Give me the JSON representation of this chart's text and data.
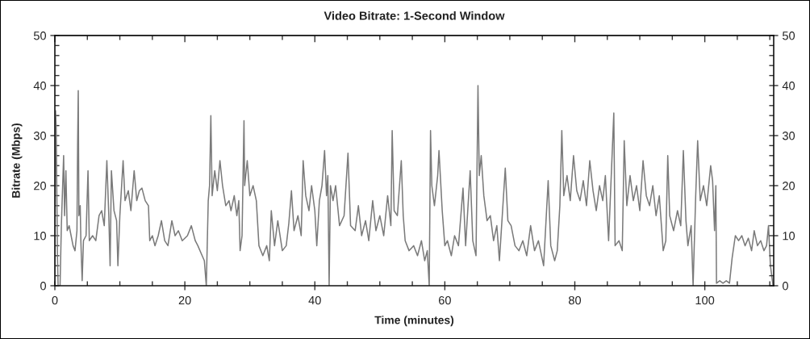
{
  "chart_data": {
    "type": "line",
    "title": "Video Bitrate: 1-Second Window",
    "xlabel": "Time (minutes)",
    "ylabel": "Bitrate (Mbps)",
    "x": [
      0.0,
      0.1,
      0.2,
      0.4,
      0.5,
      0.8,
      1.0,
      1.2,
      1.35,
      1.5,
      1.7,
      1.9,
      2.2,
      2.5,
      2.8,
      3.1,
      3.4,
      3.5,
      3.6,
      3.7,
      3.9,
      4.0,
      4.2,
      4.4,
      4.8,
      5.1,
      5.3,
      5.8,
      6.3,
      6.8,
      7.2,
      7.6,
      8.0,
      8.3,
      8.5,
      8.7,
      9.1,
      9.5,
      9.7,
      10.0,
      10.5,
      10.8,
      11.3,
      11.7,
      12.2,
      12.6,
      13.0,
      13.4,
      13.9,
      14.4,
      14.6,
      15.0,
      15.4,
      15.9,
      16.4,
      16.9,
      17.4,
      18.0,
      18.5,
      19.0,
      19.6,
      20.4,
      21.0,
      21.6,
      22.0,
      22.5,
      23.0,
      23.3,
      23.6,
      23.8,
      24.0,
      24.2,
      24.6,
      25.0,
      25.4,
      25.8,
      26.3,
      26.8,
      27.1,
      27.6,
      28.0,
      28.3,
      28.5,
      28.8,
      29.1,
      29.2,
      29.6,
      30.0,
      30.5,
      31.0,
      31.4,
      32.0,
      32.6,
      33.0,
      33.3,
      33.8,
      34.3,
      35.0,
      35.6,
      36.0,
      36.4,
      36.8,
      37.4,
      37.9,
      38.2,
      38.6,
      39.1,
      39.5,
      40.0,
      40.3,
      40.7,
      41.1,
      41.5,
      41.8,
      42.0,
      42.2,
      42.4,
      42.8,
      43.2,
      43.8,
      44.5,
      45.1,
      45.5,
      46.2,
      46.7,
      47.2,
      47.8,
      48.3,
      48.9,
      49.4,
      50.0,
      50.6,
      51.2,
      51.7,
      51.9,
      52.2,
      52.7,
      53.3,
      53.6,
      53.9,
      54.5,
      55.2,
      55.8,
      56.4,
      56.9,
      57.3,
      57.6,
      57.8,
      58.0,
      58.4,
      58.9,
      59.1,
      59.6,
      60.0,
      60.4,
      61.0,
      61.5,
      62.1,
      62.8,
      63.2,
      63.9,
      64.3,
      64.8,
      65.1,
      65.3,
      65.6,
      66.0,
      66.5,
      67.0,
      67.5,
      68.0,
      68.4,
      69.3,
      69.7,
      70.2,
      70.8,
      71.4,
      72.0,
      72.6,
      73.2,
      73.8,
      74.4,
      75.2,
      75.9,
      76.3,
      76.9,
      77.3,
      77.7,
      78.0,
      78.3,
      78.8,
      79.3,
      79.8,
      80.3,
      80.8,
      81.3,
      81.8,
      82.3,
      82.8,
      83.3,
      83.8,
      84.3,
      84.7,
      85.2,
      86.0,
      86.2,
      86.8,
      87.3,
      87.6,
      88.0,
      88.5,
      89.0,
      89.5,
      90.0,
      90.5,
      91.0,
      91.5,
      92.0,
      92.5,
      93.0,
      93.6,
      94.0,
      94.3,
      94.6,
      95.2,
      95.8,
      96.3,
      96.7,
      97.1,
      97.4,
      97.9,
      98.2,
      98.6,
      98.9,
      99.3,
      99.8,
      100.3,
      100.9,
      101.2,
      101.5,
      101.7,
      101.8,
      102.3,
      102.8,
      103.3,
      103.8,
      104.2,
      104.7,
      105.2,
      105.7,
      106.2,
      106.7,
      107.2,
      107.6,
      108.1,
      108.6,
      109.1,
      109.5,
      109.8,
      110.1,
      110.5
    ],
    "series": [
      {
        "color": "#7a7a7a",
        "values": [
          0,
          35,
          32,
          6,
          0,
          0,
          12,
          20,
          26,
          14,
          23,
          11,
          12,
          10,
          8,
          7,
          11,
          28,
          39,
          14,
          16,
          9,
          1,
          9,
          10,
          23,
          9,
          10,
          9,
          14,
          15,
          12,
          25,
          14,
          4,
          23,
          15,
          13,
          4,
          14,
          25,
          17,
          19,
          15,
          23,
          17,
          19,
          19.5,
          17,
          16,
          9,
          10,
          8,
          10,
          13,
          9,
          8,
          13,
          10,
          11,
          9,
          10,
          12,
          9,
          8,
          6.5,
          5,
          0,
          17,
          20,
          34,
          18,
          23,
          19,
          25,
          20,
          16,
          17,
          15,
          18,
          14,
          17,
          7,
          10,
          33,
          20,
          25,
          18,
          20,
          17,
          8,
          6,
          8,
          5,
          15,
          8,
          13,
          7,
          8,
          12.5,
          19,
          11,
          14,
          10,
          25,
          18,
          15,
          20,
          15,
          8,
          17,
          20,
          27,
          18,
          22,
          0,
          20,
          17,
          20,
          12,
          14,
          26.5,
          12,
          11,
          16,
          10,
          13,
          9,
          17,
          11,
          14,
          10,
          18,
          12,
          31,
          15,
          14,
          25,
          14,
          9,
          7,
          8,
          6,
          9,
          5,
          7,
          0,
          31,
          20,
          16,
          22,
          27,
          15,
          8,
          9,
          6,
          10,
          8,
          19.5,
          8,
          23,
          9,
          6,
          40,
          22,
          26,
          18,
          13,
          14,
          9,
          12,
          5,
          23.5,
          13,
          12,
          8,
          7,
          9,
          6,
          12,
          7,
          9,
          4,
          21,
          8,
          5,
          7,
          16,
          31,
          18,
          22,
          17,
          26,
          19,
          17,
          21,
          16,
          25,
          19,
          15,
          20,
          17,
          22,
          9,
          34.5,
          8,
          9,
          7,
          29,
          16,
          22,
          17,
          20,
          15,
          25,
          18,
          16,
          20,
          14,
          18,
          7,
          9,
          26,
          14,
          11,
          15,
          12,
          27,
          13,
          8,
          12,
          0,
          18,
          29,
          17,
          20,
          16,
          24,
          21,
          11,
          20,
          0.5,
          1,
          0.5,
          1,
          0.5,
          5.5,
          10,
          9,
          10,
          8,
          9.5,
          7,
          11,
          8,
          9,
          7,
          8,
          12,
          4,
          0
        ]
      }
    ],
    "xlim": [
      0,
      110.6
    ],
    "xticks": [
      0,
      {
        "value": 5,
        "label": null
      },
      {
        "value": 10,
        "label": null
      },
      {
        "value": 15,
        "label": null
      },
      20,
      {
        "value": 25,
        "label": null
      },
      {
        "value": 30,
        "label": null
      },
      {
        "value": 35,
        "label": null
      },
      40,
      {
        "value": 45,
        "label": null
      },
      {
        "value": 50,
        "label": null
      },
      {
        "value": 55,
        "label": null
      },
      60,
      {
        "value": 65,
        "label": null
      },
      {
        "value": 70,
        "label": null
      },
      {
        "value": 75,
        "label": null
      },
      80,
      {
        "value": 85,
        "label": null
      },
      {
        "value": 90,
        "label": null
      },
      {
        "value": 95,
        "label": null
      },
      100,
      {
        "value": 105,
        "label": null
      },
      {
        "value": 110,
        "label": null
      }
    ],
    "ylim": [
      0,
      50
    ],
    "yticks": [
      0,
      {
        "value": 2,
        "label": null
      },
      {
        "value": 4,
        "label": null
      },
      {
        "value": 6,
        "label": null
      },
      {
        "value": 8,
        "label": null
      },
      10,
      {
        "value": 12,
        "label": null
      },
      {
        "value": 14,
        "label": null
      },
      {
        "value": 16,
        "label": null
      },
      {
        "value": 18,
        "label": null
      },
      20,
      {
        "value": 22,
        "label": null
      },
      {
        "value": 24,
        "label": null
      },
      {
        "value": 26,
        "label": null
      },
      {
        "value": 28,
        "label": null
      },
      30,
      {
        "value": 32,
        "label": null
      },
      {
        "value": 34,
        "label": null
      },
      {
        "value": 36,
        "label": null
      },
      {
        "value": 38,
        "label": null
      },
      40,
      {
        "value": 42,
        "label": null
      },
      {
        "value": 44,
        "label": null
      },
      {
        "value": 46,
        "label": null
      },
      {
        "value": 48,
        "label": null
      },
      50
    ],
    "y2lim": [
      0,
      50
    ],
    "y2ticks": [
      0,
      {
        "value": 2,
        "label": null
      },
      {
        "value": 4,
        "label": null
      },
      {
        "value": 6,
        "label": null
      },
      {
        "value": 8,
        "label": null
      },
      10,
      {
        "value": 12,
        "label": null
      },
      {
        "value": 14,
        "label": null
      },
      {
        "value": 16,
        "label": null
      },
      {
        "value": 18,
        "label": null
      },
      20,
      {
        "value": 22,
        "label": null
      },
      {
        "value": 24,
        "label": null
      },
      {
        "value": 26,
        "label": null
      },
      {
        "value": 28,
        "label": null
      },
      30,
      {
        "value": 32,
        "label": null
      },
      {
        "value": 34,
        "label": null
      },
      {
        "value": 36,
        "label": null
      },
      {
        "value": 38,
        "label": null
      },
      40,
      {
        "value": 42,
        "label": null
      },
      {
        "value": 44,
        "label": null
      },
      {
        "value": 46,
        "label": null
      },
      {
        "value": 48,
        "label": null
      },
      50
    ]
  }
}
